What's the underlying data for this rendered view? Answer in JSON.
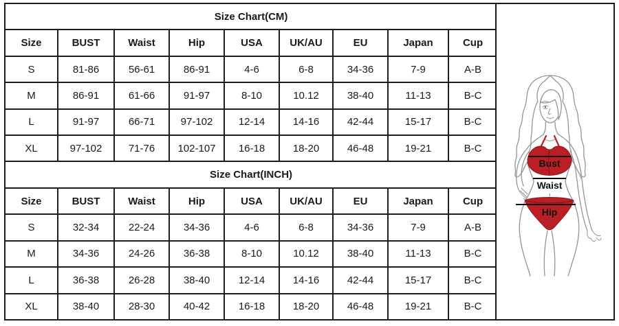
{
  "page": {
    "background": "#ffffff",
    "border_color": "#1c1c1c",
    "accent_red": "#b91f25"
  },
  "headers": [
    "Size",
    "BUST",
    "Waist",
    "Hip",
    "USA",
    "UK/AU",
    "EU",
    "Japan",
    "Cup"
  ],
  "tables": [
    {
      "title": "Size Chart(CM)",
      "rows": [
        [
          "S",
          "81-86",
          "56-61",
          "86-91",
          "4-6",
          "6-8",
          "34-36",
          "7-9",
          "A-B"
        ],
        [
          "M",
          "86-91",
          "61-66",
          "91-97",
          "8-10",
          "10.12",
          "38-40",
          "11-13",
          "B-C"
        ],
        [
          "L",
          "91-97",
          "66-71",
          "97-102",
          "12-14",
          "14-16",
          "42-44",
          "15-17",
          "B-C"
        ],
        [
          "XL",
          "97-102",
          "71-76",
          "102-107",
          "16-18",
          "18-20",
          "46-48",
          "19-21",
          "B-C"
        ]
      ]
    },
    {
      "title": "Size Chart(INCH)",
      "rows": [
        [
          "S",
          "32-34",
          "22-24",
          "34-36",
          "4-6",
          "6-8",
          "34-36",
          "7-9",
          "A-B"
        ],
        [
          "M",
          "34-36",
          "24-26",
          "36-38",
          "8-10",
          "10.12",
          "38-40",
          "11-13",
          "B-C"
        ],
        [
          "L",
          "36-38",
          "26-28",
          "38-40",
          "12-14",
          "14-16",
          "42-44",
          "15-17",
          "B-C"
        ],
        [
          "XL",
          "38-40",
          "28-30",
          "40-42",
          "16-18",
          "18-20",
          "46-48",
          "19-21",
          "B-C"
        ]
      ]
    }
  ],
  "figure": {
    "labels": [
      "Bust",
      "Waist",
      "Hip"
    ],
    "description-icon": "woman-in-red-bikini-measurement-guide"
  }
}
